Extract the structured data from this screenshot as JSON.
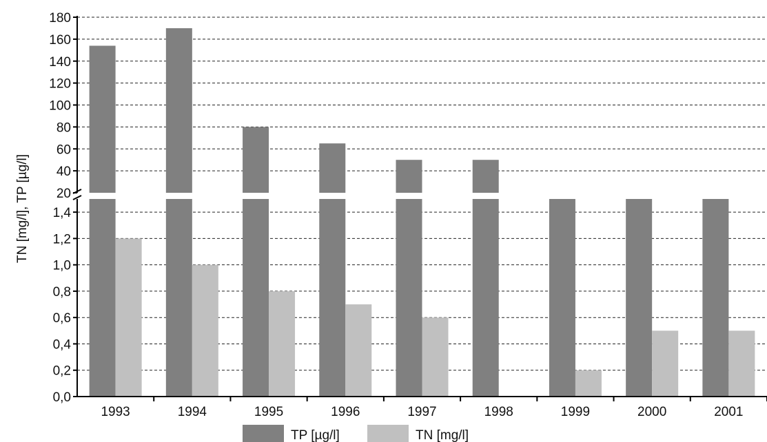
{
  "chart_data": {
    "type": "bar",
    "ylabel": "TN [mg/l], TP [µg/l]",
    "categories": [
      "1993",
      "1994",
      "1995",
      "1996",
      "1997",
      "1998",
      "1999",
      "2000",
      "2001"
    ],
    "series": [
      {
        "name": "TP [µg/l]",
        "color": "#808080",
        "values": [
          154,
          170,
          80,
          65,
          50,
          50,
          null,
          null,
          null
        ],
        "continues_to_upper_panel": [
          true,
          true,
          true,
          true,
          true,
          true,
          false,
          false,
          false
        ]
      },
      {
        "name": "TN [mg/l]",
        "color": "#c0c0c0",
        "values": [
          1.2,
          1.0,
          0.8,
          0.7,
          0.6,
          null,
          0.2,
          0.5,
          0.5
        ]
      }
    ],
    "broken_axis": true,
    "upper_panel": {
      "ylim": [
        20,
        180
      ],
      "ticks": [
        20,
        40,
        60,
        80,
        100,
        120,
        140,
        160,
        180
      ]
    },
    "lower_panel": {
      "ylim": [
        0,
        1.5
      ],
      "ticks": [
        "0,0",
        "0,2",
        "0,4",
        "0,6",
        "0,8",
        "1,0",
        "1,2",
        "1,4"
      ],
      "tick_values": [
        0,
        0.2,
        0.4,
        0.6,
        0.8,
        1.0,
        1.2,
        1.4
      ]
    },
    "grid": "dashed horizontal",
    "legend_position": "bottom-center"
  }
}
